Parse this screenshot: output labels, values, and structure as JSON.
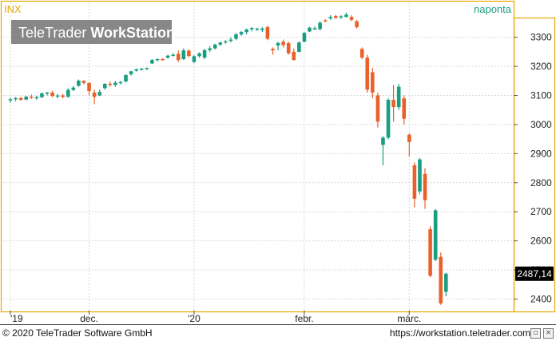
{
  "chart": {
    "symbol": "INX",
    "interval": "naponta",
    "logo": {
      "brand_light": "TeleTrader ",
      "brand_bold": "WorkStation"
    }
  },
  "footer": {
    "copyright": "© 2020 TeleTrader Software GmbH",
    "url": "https://workstation.teletrader.com"
  },
  "chart_data": {
    "type": "candlestick",
    "title": "INX",
    "interval": "naponta",
    "ylim": [
      2360,
      3420
    ],
    "y_ticks": [
      2400,
      2500,
      2600,
      2700,
      2800,
      2900,
      3000,
      3100,
      3200,
      3300
    ],
    "y_tick_labels": [
      "2400",
      "2500",
      "2600",
      "2700",
      "2800",
      "2900",
      "3000",
      "3100",
      "3200",
      "3300"
    ],
    "x_labels": [
      {
        "label": "'19",
        "index": 0
      },
      {
        "label": "dec.",
        "index": 15
      },
      {
        "label": "'20",
        "index": 35
      },
      {
        "label": "febr.",
        "index": 56
      },
      {
        "label": "márc.",
        "index": 76
      }
    ],
    "last_value": "2487,14",
    "colors": {
      "up": "#1a9e82",
      "down": "#e8612a",
      "frame": "#e8a700",
      "symbol": "#e8a700",
      "interval": "#1a9e82",
      "grid": "#d8d8d8"
    },
    "grid": true,
    "candles": [
      {
        "o": 3085,
        "h": 3092,
        "l": 3075,
        "c": 3087
      },
      {
        "o": 3087,
        "h": 3094,
        "l": 3080,
        "c": 3091
      },
      {
        "o": 3091,
        "h": 3096,
        "l": 3082,
        "c": 3085
      },
      {
        "o": 3086,
        "h": 3098,
        "l": 3083,
        "c": 3096
      },
      {
        "o": 3096,
        "h": 3103,
        "l": 3088,
        "c": 3093
      },
      {
        "o": 3092,
        "h": 3099,
        "l": 3085,
        "c": 3094
      },
      {
        "o": 3094,
        "h": 3110,
        "l": 3091,
        "c": 3107
      },
      {
        "o": 3107,
        "h": 3112,
        "l": 3100,
        "c": 3110
      },
      {
        "o": 3110,
        "h": 3116,
        "l": 3094,
        "c": 3098
      },
      {
        "o": 3098,
        "h": 3105,
        "l": 3090,
        "c": 3100
      },
      {
        "o": 3100,
        "h": 3105,
        "l": 3090,
        "c": 3095
      },
      {
        "o": 3095,
        "h": 3125,
        "l": 3093,
        "c": 3119
      },
      {
        "o": 3119,
        "h": 3132,
        "l": 3115,
        "c": 3127
      },
      {
        "o": 3133,
        "h": 3155,
        "l": 3130,
        "c": 3151
      },
      {
        "o": 3150,
        "h": 3153,
        "l": 3138,
        "c": 3143
      },
      {
        "o": 3143,
        "h": 3145,
        "l": 3100,
        "c": 3115
      },
      {
        "o": 3110,
        "h": 3120,
        "l": 3070,
        "c": 3095
      },
      {
        "o": 3100,
        "h": 3120,
        "l": 3098,
        "c": 3112
      },
      {
        "o": 3125,
        "h": 3142,
        "l": 3120,
        "c": 3140
      },
      {
        "o": 3140,
        "h": 3148,
        "l": 3130,
        "c": 3138
      },
      {
        "o": 3136,
        "h": 3150,
        "l": 3130,
        "c": 3144
      },
      {
        "o": 3144,
        "h": 3150,
        "l": 3138,
        "c": 3146
      },
      {
        "o": 3148,
        "h": 3173,
        "l": 3145,
        "c": 3170
      },
      {
        "o": 3173,
        "h": 3185,
        "l": 3168,
        "c": 3183
      },
      {
        "o": 3185,
        "h": 3193,
        "l": 3182,
        "c": 3190
      },
      {
        "o": 3190,
        "h": 3195,
        "l": 3186,
        "c": 3192
      },
      {
        "o": 3192,
        "h": 3196,
        "l": 3188,
        "c": 3194
      },
      {
        "o": 3210,
        "h": 3225,
        "l": 3208,
        "c": 3222
      },
      {
        "o": 3222,
        "h": 3228,
        "l": 3218,
        "c": 3225
      },
      {
        "o": 3225,
        "h": 3228,
        "l": 3220,
        "c": 3222
      },
      {
        "o": 3230,
        "h": 3240,
        "l": 3226,
        "c": 3237
      },
      {
        "o": 3237,
        "h": 3245,
        "l": 3234,
        "c": 3240
      },
      {
        "o": 3243,
        "h": 3255,
        "l": 3215,
        "c": 3222
      },
      {
        "o": 3225,
        "h": 3262,
        "l": 3222,
        "c": 3255
      },
      {
        "o": 3254,
        "h": 3259,
        "l": 3230,
        "c": 3236
      },
      {
        "o": 3215,
        "h": 3238,
        "l": 3212,
        "c": 3235
      },
      {
        "o": 3235,
        "h": 3248,
        "l": 3230,
        "c": 3245
      },
      {
        "o": 3230,
        "h": 3260,
        "l": 3225,
        "c": 3256
      },
      {
        "o": 3256,
        "h": 3270,
        "l": 3250,
        "c": 3262
      },
      {
        "o": 3262,
        "h": 3278,
        "l": 3258,
        "c": 3275
      },
      {
        "o": 3275,
        "h": 3285,
        "l": 3270,
        "c": 3282
      },
      {
        "o": 3283,
        "h": 3290,
        "l": 3278,
        "c": 3286
      },
      {
        "o": 3290,
        "h": 3300,
        "l": 3282,
        "c": 3292
      },
      {
        "o": 3295,
        "h": 3315,
        "l": 3290,
        "c": 3310
      },
      {
        "o": 3310,
        "h": 3322,
        "l": 3305,
        "c": 3318
      },
      {
        "o": 3318,
        "h": 3330,
        "l": 3310,
        "c": 3327
      },
      {
        "o": 3328,
        "h": 3335,
        "l": 3320,
        "c": 3332
      },
      {
        "o": 3330,
        "h": 3333,
        "l": 3322,
        "c": 3330
      },
      {
        "o": 3325,
        "h": 3335,
        "l": 3318,
        "c": 3330
      },
      {
        "o": 3335,
        "h": 3340,
        "l": 3290,
        "c": 3295
      },
      {
        "o": 3260,
        "h": 3265,
        "l": 3240,
        "c": 3255
      },
      {
        "o": 3272,
        "h": 3285,
        "l": 3255,
        "c": 3280
      },
      {
        "o": 3285,
        "h": 3292,
        "l": 3265,
        "c": 3273
      },
      {
        "o": 3280,
        "h": 3285,
        "l": 3240,
        "c": 3245
      },
      {
        "o": 3250,
        "h": 3262,
        "l": 3220,
        "c": 3222
      },
      {
        "o": 3250,
        "h": 3286,
        "l": 3248,
        "c": 3282
      },
      {
        "o": 3285,
        "h": 3318,
        "l": 3282,
        "c": 3315
      },
      {
        "o": 3320,
        "h": 3336,
        "l": 3318,
        "c": 3333
      },
      {
        "o": 3331,
        "h": 3338,
        "l": 3325,
        "c": 3331
      },
      {
        "o": 3328,
        "h": 3355,
        "l": 3324,
        "c": 3350
      },
      {
        "o": 3358,
        "h": 3362,
        "l": 3352,
        "c": 3356
      },
      {
        "o": 3365,
        "h": 3376,
        "l": 3360,
        "c": 3370
      },
      {
        "o": 3373,
        "h": 3378,
        "l": 3363,
        "c": 3367
      },
      {
        "o": 3370,
        "h": 3376,
        "l": 3363,
        "c": 3372
      },
      {
        "o": 3370,
        "h": 3385,
        "l": 3368,
        "c": 3378
      },
      {
        "o": 3370,
        "h": 3376,
        "l": 3355,
        "c": 3360
      },
      {
        "o": 3355,
        "h": 3360,
        "l": 3330,
        "c": 3335
      },
      {
        "o": 3260,
        "h": 3265,
        "l": 3225,
        "c": 3230
      },
      {
        "o": 3230,
        "h": 3240,
        "l": 3110,
        "c": 3120
      },
      {
        "o": 3180,
        "h": 3195,
        "l": 3090,
        "c": 3110
      },
      {
        "o": 3100,
        "h": 3110,
        "l": 2990,
        "c": 3010
      },
      {
        "o": 2930,
        "h": 2960,
        "l": 2860,
        "c": 2955
      },
      {
        "o": 2955,
        "h": 3090,
        "l": 2950,
        "c": 3085
      },
      {
        "o": 3085,
        "h": 3136,
        "l": 3010,
        "c": 3060
      },
      {
        "o": 3060,
        "h": 3140,
        "l": 3050,
        "c": 3130
      },
      {
        "o": 3090,
        "h": 3100,
        "l": 3000,
        "c": 3020
      },
      {
        "o": 2965,
        "h": 2970,
        "l": 2890,
        "c": 2940
      },
      {
        "o": 2860,
        "h": 2870,
        "l": 2715,
        "c": 2745
      },
      {
        "o": 2770,
        "h": 2885,
        "l": 2760,
        "c": 2880
      },
      {
        "o": 2830,
        "h": 2850,
        "l": 2710,
        "c": 2740
      },
      {
        "o": 2640,
        "h": 2650,
        "l": 2475,
        "c": 2480
      },
      {
        "o": 2535,
        "h": 2710,
        "l": 2530,
        "c": 2705
      },
      {
        "o": 2545,
        "h": 2560,
        "l": 2380,
        "c": 2385
      },
      {
        "o": 2425,
        "h": 2490,
        "l": 2410,
        "c": 2487
      }
    ]
  }
}
